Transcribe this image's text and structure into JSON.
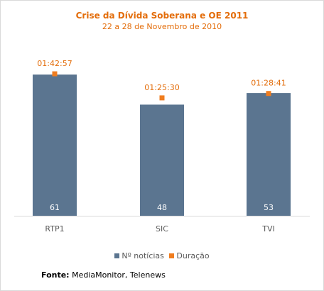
{
  "chart_data": {
    "type": "bar",
    "title": "Crise da Dívida Soberana e OE 2011",
    "subtitle": "22 a 28 de Novembro de 2010",
    "categories": [
      "RTP1",
      "SIC",
      "TVI"
    ],
    "series": [
      {
        "name": "Nº notícias",
        "values": [
          61,
          48,
          53
        ],
        "color": "#5b7590"
      },
      {
        "name": "Duração",
        "values": [
          "01:42:57",
          "01:25:30",
          "01:28:41"
        ],
        "seconds": [
          6177,
          5130,
          5321
        ],
        "color": "#f07d1f"
      }
    ],
    "ylim": [
      0,
      70
    ],
    "grid": false,
    "legend_position": "bottom"
  },
  "source": {
    "label": "Fonte:",
    "text": "MediaMonitor, Telenews"
  }
}
